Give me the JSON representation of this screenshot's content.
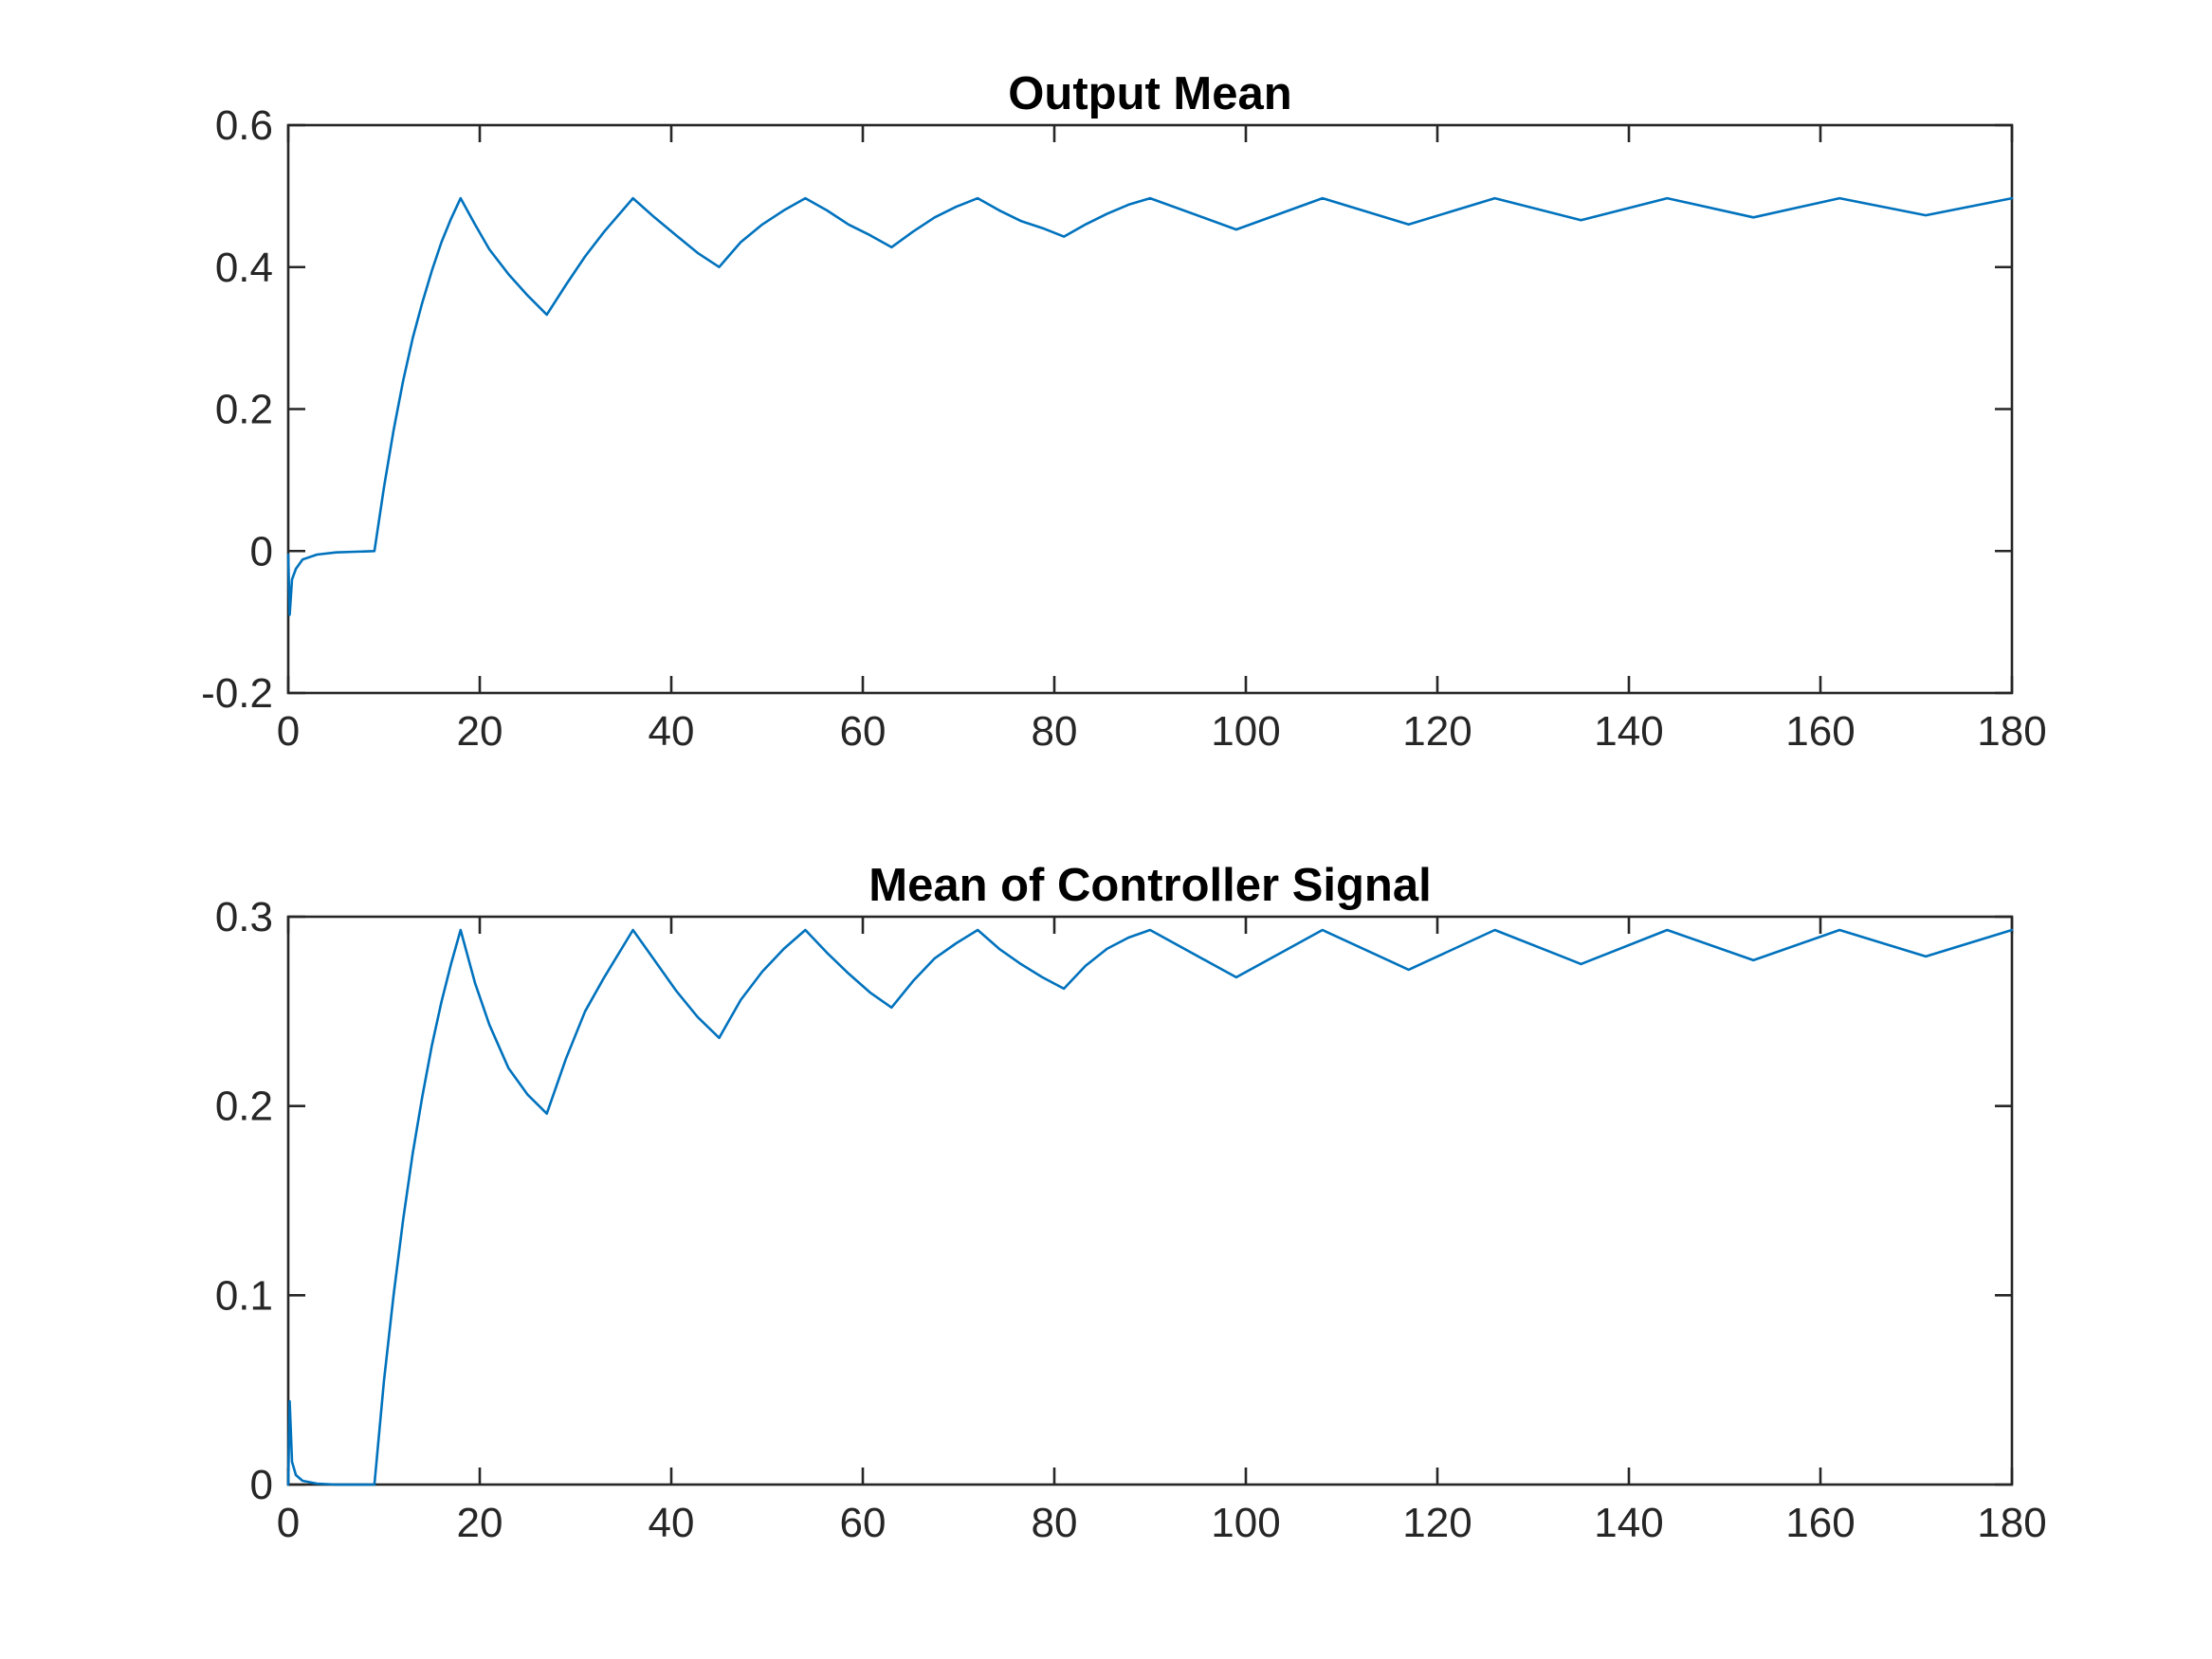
{
  "chart_data": [
    {
      "type": "line",
      "title": "Output Mean",
      "xlabel": "",
      "ylabel": "",
      "xlim": [
        0,
        180
      ],
      "ylim": [
        -0.2,
        0.6
      ],
      "xticks": [
        0,
        20,
        40,
        60,
        80,
        100,
        120,
        140,
        160,
        180
      ],
      "xtick_labels": [
        "0",
        "20",
        "40",
        "60",
        "80",
        "100",
        "120",
        "140",
        "160",
        "180"
      ],
      "yticks": [
        -0.2,
        0,
        0.2,
        0.4,
        0.6
      ],
      "ytick_labels": [
        "-0.2",
        "0",
        "0.2",
        "0.4",
        "0.6"
      ],
      "grid": false,
      "series": [
        {
          "color": "#0072BD",
          "x": [
            0,
            0.15,
            0.4,
            0.8,
            1.5,
            3,
            5,
            7,
            9,
            10,
            11,
            12,
            13,
            14,
            15,
            16,
            17,
            18,
            19.5,
            21,
            23,
            25,
            27,
            29,
            31,
            33,
            36,
            38.25,
            40.5,
            42.75,
            45,
            47.25,
            49.5,
            51.75,
            54,
            56.25,
            58.5,
            60.75,
            63,
            65.25,
            67.5,
            69.75,
            72,
            74.25,
            76.5,
            78.75,
            81,
            83.25,
            85.5,
            87.75,
            90,
            99,
            108,
            117,
            126,
            135,
            144,
            153,
            162,
            171,
            180
          ],
          "y": [
            -0.005,
            -0.09,
            -0.04,
            -0.025,
            -0.012,
            -0.005,
            -0.002,
            -0.001,
            0,
            0.09,
            0.17,
            0.24,
            0.3,
            0.35,
            0.395,
            0.435,
            0.468,
            0.497,
            0.46,
            0.425,
            0.39,
            0.36,
            0.333,
            0.375,
            0.415,
            0.45,
            0.497,
            0.47,
            0.445,
            0.42,
            0.4,
            0.435,
            0.46,
            0.48,
            0.497,
            0.48,
            0.46,
            0.445,
            0.428,
            0.45,
            0.47,
            0.485,
            0.497,
            0.48,
            0.465,
            0.455,
            0.443,
            0.46,
            0.475,
            0.488,
            0.497,
            0.453,
            0.497,
            0.46,
            0.497,
            0.466,
            0.497,
            0.47,
            0.497,
            0.473,
            0.497
          ]
        }
      ]
    },
    {
      "type": "line",
      "title": "Mean of Controller Signal",
      "xlabel": "",
      "ylabel": "",
      "xlim": [
        0,
        180
      ],
      "ylim": [
        0,
        0.3
      ],
      "xticks": [
        0,
        20,
        40,
        60,
        80,
        100,
        120,
        140,
        160,
        180
      ],
      "xtick_labels": [
        "0",
        "20",
        "40",
        "60",
        "80",
        "100",
        "120",
        "140",
        "160",
        "180"
      ],
      "yticks": [
        0,
        0.1,
        0.2,
        0.3
      ],
      "ytick_labels": [
        "0",
        "0.1",
        "0.2",
        "0.3"
      ],
      "grid": false,
      "series": [
        {
          "color": "#0072BD",
          "x": [
            0,
            0.15,
            0.4,
            0.8,
            1.5,
            3,
            5,
            9,
            10,
            11,
            12,
            13,
            14,
            15,
            16,
            17,
            18,
            19.5,
            21,
            23,
            25,
            27,
            29,
            31,
            33,
            36,
            38.25,
            40.5,
            42.75,
            45,
            47.25,
            49.5,
            51.75,
            54,
            56.25,
            58.5,
            60.75,
            63,
            65.25,
            67.5,
            69.75,
            72,
            74.25,
            76.5,
            78.75,
            81,
            83.25,
            85.5,
            87.75,
            90,
            99,
            108,
            117,
            126,
            135,
            144,
            153,
            162,
            171,
            180
          ],
          "y": [
            0,
            0.044,
            0.012,
            0.005,
            0.002,
            0.0005,
            0,
            0,
            0.055,
            0.1,
            0.14,
            0.175,
            0.205,
            0.232,
            0.255,
            0.275,
            0.293,
            0.265,
            0.243,
            0.22,
            0.206,
            0.196,
            0.225,
            0.25,
            0.268,
            0.293,
            0.277,
            0.261,
            0.247,
            0.236,
            0.256,
            0.271,
            0.283,
            0.293,
            0.281,
            0.27,
            0.26,
            0.252,
            0.266,
            0.278,
            0.286,
            0.293,
            0.283,
            0.275,
            0.268,
            0.262,
            0.274,
            0.283,
            0.289,
            0.293,
            0.268,
            0.293,
            0.272,
            0.293,
            0.275,
            0.293,
            0.277,
            0.293,
            0.279,
            0.293
          ]
        }
      ]
    }
  ]
}
